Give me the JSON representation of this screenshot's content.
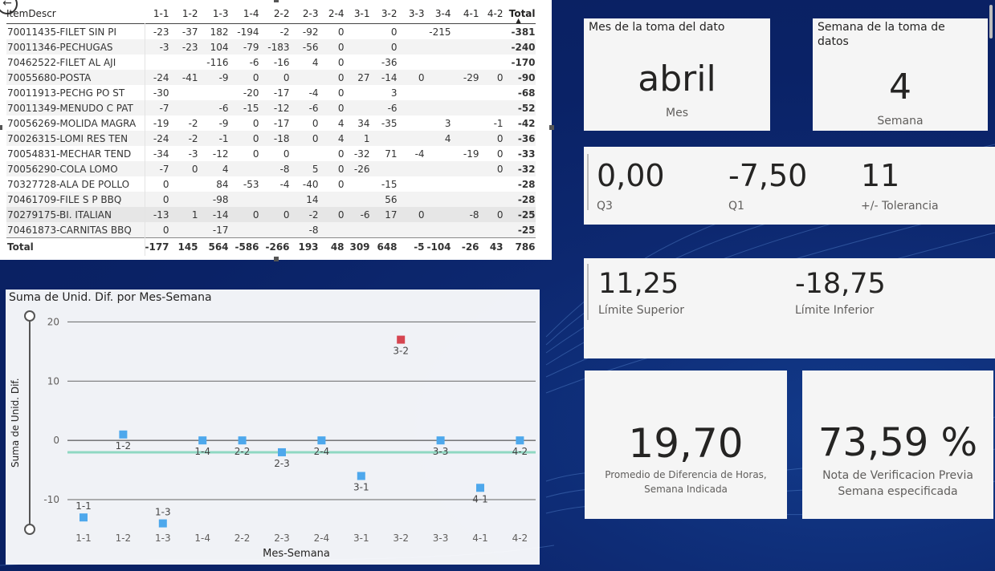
{
  "table": {
    "columns": [
      "ItemDescr",
      "1-1",
      "1-2",
      "1-3",
      "1-4",
      "2-2",
      "2-3",
      "2-4",
      "3-1",
      "3-2",
      "3-3",
      "3-4",
      "4-1",
      "4-2",
      "Total"
    ],
    "rows": [
      [
        "70011435-FILET SIN PI",
        "-23",
        "-37",
        "182",
        "-194",
        "-2",
        "-92",
        "0",
        "",
        "0",
        "",
        "-215",
        "",
        "",
        "-381"
      ],
      [
        "70011346-PECHUGAS",
        "-3",
        "-23",
        "104",
        "-79",
        "-183",
        "-56",
        "0",
        "",
        "0",
        "",
        "",
        "",
        "",
        "-240"
      ],
      [
        "70462522-FILET AL AJI",
        "",
        "",
        "-116",
        "-6",
        "-16",
        "4",
        "0",
        "",
        "-36",
        "",
        "",
        "",
        "",
        "-170"
      ],
      [
        "70055680-POSTA",
        "-24",
        "-41",
        "-9",
        "0",
        "0",
        "",
        "0",
        "27",
        "-14",
        "0",
        "",
        "-29",
        "0",
        "-90"
      ],
      [
        "70011913-PECHG PO ST",
        "-30",
        "",
        "",
        "-20",
        "-17",
        "-4",
        "0",
        "",
        "3",
        "",
        "",
        "",
        "",
        "-68"
      ],
      [
        "70011349-MENUDO C PAT",
        "-7",
        "",
        "-6",
        "-15",
        "-12",
        "-6",
        "0",
        "",
        "-6",
        "",
        "",
        "",
        "",
        "-52"
      ],
      [
        "70056269-MOLIDA MAGRA",
        "-19",
        "-2",
        "-9",
        "0",
        "-17",
        "0",
        "4",
        "34",
        "-35",
        "",
        "3",
        "",
        "-1",
        "-42"
      ],
      [
        "70026315-LOMI RES TEN",
        "-24",
        "-2",
        "-1",
        "0",
        "-18",
        "0",
        "4",
        "1",
        "",
        "",
        "4",
        "",
        "0",
        "-36"
      ],
      [
        "70054831-MECHAR TEND",
        "-34",
        "-3",
        "-12",
        "0",
        "0",
        "",
        "0",
        "-32",
        "71",
        "-4",
        "",
        "-19",
        "0",
        "-33"
      ],
      [
        "70056290-COLA LOMO",
        "-7",
        "0",
        "4",
        "",
        "-8",
        "5",
        "0",
        "-26",
        "",
        "",
        "",
        "",
        "0",
        "-32"
      ],
      [
        "70327728-ALA DE POLLO",
        "0",
        "",
        "84",
        "-53",
        "-4",
        "-40",
        "0",
        "",
        "-15",
        "",
        "",
        "",
        "",
        "-28"
      ],
      [
        "70461709-FILE S P BBQ",
        "0",
        "",
        "-98",
        "",
        "",
        "14",
        "",
        "",
        "56",
        "",
        "",
        "",
        "",
        "-28"
      ],
      [
        "70279175-BI. ITALIAN",
        "-13",
        "1",
        "-14",
        "0",
        "0",
        "-2",
        "0",
        "-6",
        "17",
        "0",
        "",
        "-8",
        "0",
        "-25"
      ],
      [
        "70461873-CARNITAS BBQ",
        "0",
        "",
        "-17",
        "",
        "",
        "-8",
        "",
        "",
        "",
        "",
        "",
        "",
        "",
        "-25"
      ]
    ],
    "total_row": [
      "Total",
      "-177",
      "145",
      "564",
      "-586",
      "-266",
      "193",
      "48",
      "309",
      "648",
      "-5",
      "-104",
      "-26",
      "43",
      "786"
    ],
    "sort_indicator": "▲",
    "toolbar": [
      "filter-icon",
      "focus-mode-icon",
      "more-options-icon"
    ]
  },
  "chart_data": {
    "type": "scatter",
    "title": "Suma de Unid. Dif. por Mes-Semana",
    "xlabel": "Mes-Semana",
    "ylabel": "Suma de Unid. Dif.",
    "categories": [
      "1-1",
      "1-2",
      "1-3",
      "1-4",
      "2-2",
      "2-3",
      "2-4",
      "3-1",
      "3-2",
      "3-3",
      "4-1",
      "4-2"
    ],
    "values": [
      -13,
      1,
      -14,
      0,
      0,
      -2,
      0,
      -6,
      17,
      0,
      -8,
      0
    ],
    "highlight": [
      "3-2"
    ],
    "ylim": [
      -15,
      21
    ],
    "yticks": [
      20,
      10,
      0,
      -10
    ],
    "reference_line": -2,
    "colors": {
      "point": "#4ea8ec",
      "highlight": "#d64550",
      "ref": "#8fd8c2"
    }
  },
  "cards": {
    "mes": {
      "title": "Mes de la toma del dato",
      "value": "abril",
      "label": "Mes"
    },
    "semana": {
      "title": "Semana de la toma de datos",
      "value": "4",
      "label": "Semana"
    },
    "q3": {
      "value": "0,00",
      "label": "Q3"
    },
    "q1": {
      "value": "-7,50",
      "label": "Q1"
    },
    "tol": {
      "value": "11",
      "label": "+/- Tolerancia"
    },
    "lsup": {
      "value": "11,25",
      "label": "Límite Superior"
    },
    "linf": {
      "value": "-18,75",
      "label": "Límite Inferior"
    },
    "prom": {
      "value": "19,70",
      "label_1": "Promedio de Diferencia de Horas,",
      "label_2": "Semana Indicada"
    },
    "nota": {
      "value": "73,59 %",
      "label_1": "Nota de Verificacion Previa",
      "label_2": "Semana especificada"
    }
  }
}
